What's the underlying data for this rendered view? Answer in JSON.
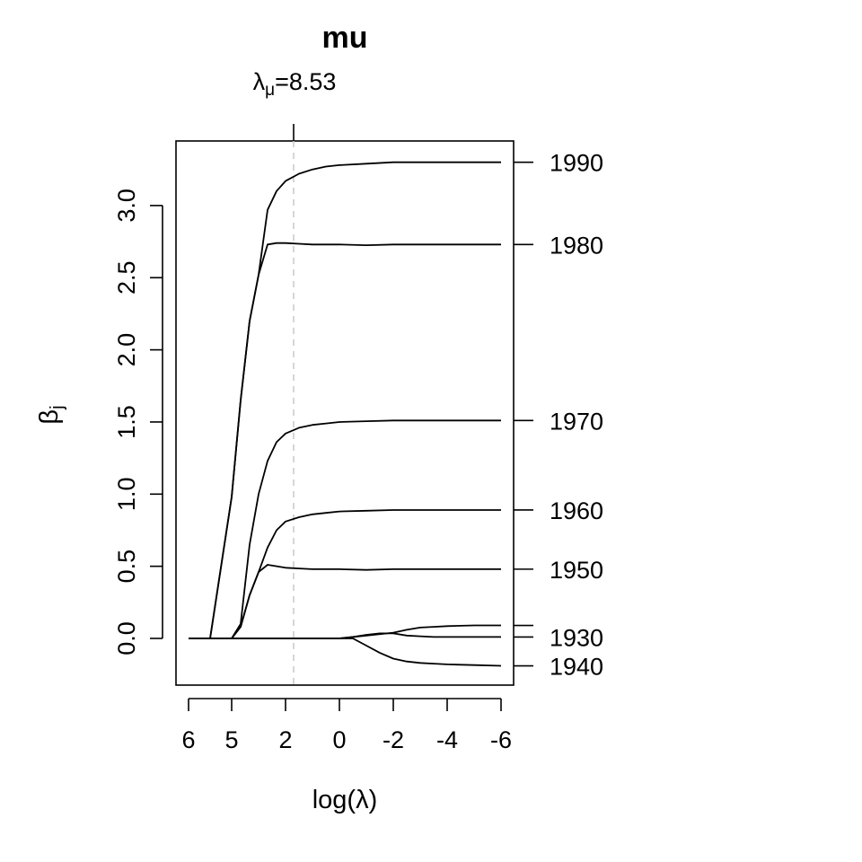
{
  "chart_data": {
    "type": "line",
    "title": "mu",
    "xlabel": "log(λ)",
    "ylabel": "βj",
    "ylabel_main": "β",
    "ylabel_sub": "j",
    "selected_lambda": {
      "label_main": "λ",
      "label_sub": "μ",
      "label_rest": "=8.53",
      "x": 1.7
    },
    "x_tick_labels": [
      "6",
      "5",
      "2",
      "0",
      "-2",
      "-4",
      "-6"
    ],
    "y_ticks": [
      0,
      0.5,
      1,
      1.5,
      2,
      2.5,
      3
    ],
    "y_tick_labels": [
      "0.0",
      "0.5",
      "1.0",
      "1.5",
      "2.0",
      "2.5",
      "3.0"
    ],
    "ylim": [
      -0.32,
      3.45
    ],
    "grid": false,
    "legend": "none",
    "series": [
      {
        "name": "1990",
        "label_y": 3.3,
        "x": [
          6,
          5.5,
          5,
          4.5,
          4,
          3.5,
          3,
          2.5,
          2,
          1.5,
          1,
          0.5,
          0,
          -1,
          -2,
          -3,
          -4,
          -5,
          -6
        ],
        "y": [
          0,
          0,
          0.98,
          1.65,
          2.2,
          2.52,
          2.97,
          3.1,
          3.17,
          3.22,
          3.25,
          3.27,
          3.28,
          3.29,
          3.3,
          3.3,
          3.3,
          3.3,
          3.3
        ]
      },
      {
        "name": "1980",
        "label_y": 2.73,
        "x": [
          6,
          5.5,
          5,
          4.5,
          4,
          3.5,
          3,
          2.5,
          2,
          1.5,
          1,
          0.5,
          0,
          -1,
          -2,
          -3,
          -4,
          -5,
          -6
        ],
        "y": [
          0,
          0,
          0.98,
          1.65,
          2.2,
          2.52,
          2.73,
          2.74,
          2.74,
          2.735,
          2.73,
          2.73,
          2.73,
          2.725,
          2.73,
          2.73,
          2.73,
          2.73,
          2.73
        ]
      },
      {
        "name": "1970",
        "label_y": 1.51,
        "x": [
          6,
          5.5,
          5,
          4.5,
          4,
          3.5,
          3,
          2.5,
          2,
          1.5,
          1,
          0.5,
          0,
          -1,
          -2,
          -3,
          -4,
          -5,
          -6
        ],
        "y": [
          0,
          0,
          0,
          0.1,
          0.65,
          1.0,
          1.23,
          1.36,
          1.42,
          1.46,
          1.48,
          1.49,
          1.5,
          1.505,
          1.51,
          1.51,
          1.51,
          1.51,
          1.51
        ]
      },
      {
        "name": "1960",
        "label_y": 0.89,
        "x": [
          6,
          5.5,
          5,
          4.5,
          4,
          3.5,
          3,
          2.5,
          2,
          1.5,
          1,
          0.5,
          0,
          -1,
          -2,
          -3,
          -4,
          -5,
          -6
        ],
        "y": [
          0,
          0,
          0,
          0.08,
          0.3,
          0.46,
          0.63,
          0.75,
          0.81,
          0.84,
          0.86,
          0.87,
          0.88,
          0.885,
          0.89,
          0.89,
          0.89,
          0.89,
          0.89
        ]
      },
      {
        "name": "1950",
        "label_y": 0.48,
        "x": [
          6,
          5.5,
          5,
          4.5,
          4,
          3.5,
          3,
          2.5,
          2,
          1.5,
          1,
          0.5,
          0,
          -1,
          -2,
          -3,
          -4,
          -5,
          -6
        ],
        "y": [
          0,
          0,
          0,
          0.08,
          0.3,
          0.46,
          0.51,
          0.5,
          0.49,
          0.485,
          0.48,
          0.48,
          0.48,
          0.475,
          0.48,
          0.48,
          0.48,
          0.48,
          0.48
        ]
      },
      {
        "name": "",
        "label_y": 0.09,
        "x": [
          6,
          5,
          4,
          3,
          2,
          1,
          0,
          -1,
          -2,
          -2.5,
          -3,
          -3.5,
          -4,
          -5,
          -6
        ],
        "y": [
          0,
          0,
          0,
          0,
          0,
          0,
          0,
          0.02,
          0.04,
          0.06,
          0.075,
          0.08,
          0.085,
          0.09,
          0.09
        ]
      },
      {
        "name": "1930",
        "label_y": 0.01,
        "x": [
          6,
          5,
          4,
          3,
          2,
          1,
          0,
          -0.5,
          -1,
          -1.5,
          -2,
          -2.5,
          -3,
          -3.5,
          -4,
          -5,
          -6
        ],
        "y": [
          0,
          0,
          0,
          0,
          0,
          0,
          0,
          0.01,
          0.025,
          0.035,
          0.035,
          0.02,
          0.015,
          0.01,
          0.01,
          0.01,
          0.01
        ]
      },
      {
        "name": "1940",
        "label_y": -0.19,
        "x": [
          6,
          5,
          4,
          3,
          2,
          1,
          0,
          -0.5,
          -1,
          -1.5,
          -2,
          -2.5,
          -3,
          -3.5,
          -4,
          -5,
          -6
        ],
        "y": [
          0,
          0,
          0,
          0,
          0,
          0,
          0,
          0,
          -0.05,
          -0.1,
          -0.14,
          -0.16,
          -0.17,
          -0.175,
          -0.18,
          -0.185,
          -0.19
        ]
      }
    ]
  }
}
